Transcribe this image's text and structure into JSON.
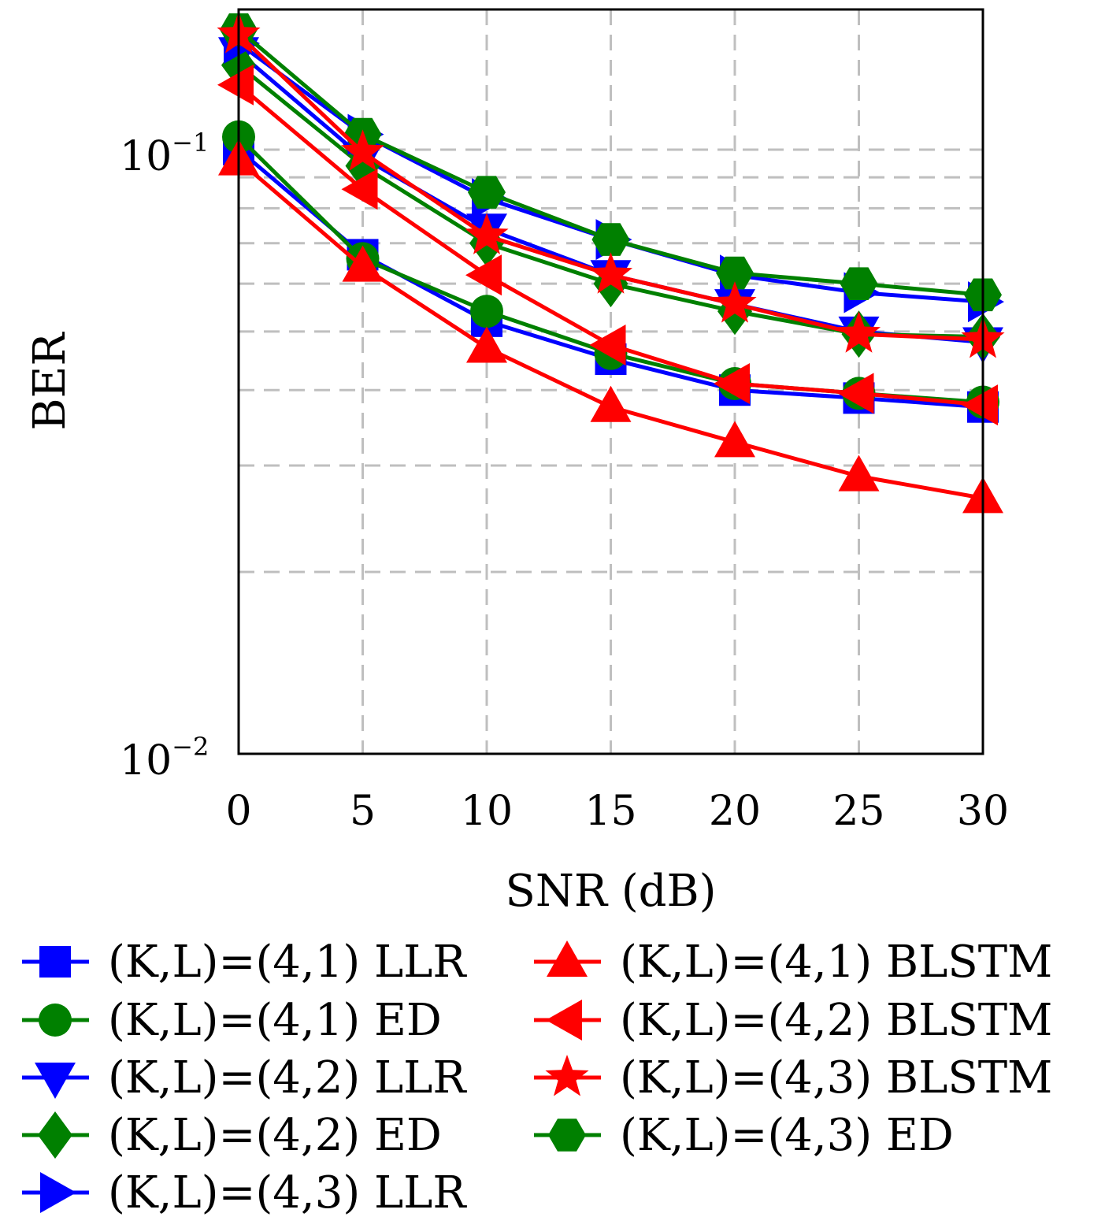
{
  "chart_data": {
    "type": "line",
    "xlabel": "SNR (dB)",
    "ylabel": "BER",
    "xlim": [
      0,
      30
    ],
    "ylim": [
      0.01,
      0.16
    ],
    "yscale": "log",
    "grid": true,
    "legend_position": "bottom",
    "x_ticks": [
      "0",
      "5",
      "10",
      "15",
      "20",
      "25",
      "30"
    ],
    "y_ticks": [
      {
        "base": "10",
        "exp": "−1",
        "value": 0.1
      },
      {
        "base": "10",
        "exp": "−2",
        "value": 0.01
      }
    ],
    "x": [
      0,
      5,
      10,
      15,
      20,
      25,
      30
    ],
    "series": [
      {
        "name": "(K,L)=(4,1) LLR",
        "color": "#0000ff",
        "marker": "square",
        "values": [
          0.1,
          0.067,
          0.052,
          0.045,
          0.04,
          0.0388,
          0.0375
        ]
      },
      {
        "name": "(K,L)=(4,1) ED",
        "color": "#008000",
        "marker": "circle",
        "values": [
          0.105,
          0.066,
          0.054,
          0.046,
          0.041,
          0.0395,
          0.0382
        ]
      },
      {
        "name": "(K,L)=(4,2) LLR",
        "color": "#0000ff",
        "marker": "triangle-down",
        "values": [
          0.145,
          0.097,
          0.074,
          0.062,
          0.0555,
          0.05,
          0.048
        ]
      },
      {
        "name": "(K,L)=(4,2) ED",
        "color": "#008000",
        "marker": "diamond",
        "values": [
          0.138,
          0.094,
          0.07,
          0.06,
          0.054,
          0.0495,
          0.049
        ]
      },
      {
        "name": "(K,L)=(4,3) LLR",
        "color": "#0000ff",
        "marker": "triangle-right",
        "values": [
          0.15,
          0.106,
          0.083,
          0.071,
          0.062,
          0.058,
          0.056
        ]
      },
      {
        "name": "(K,L)=(4,1) BLSTM",
        "color": "#ff0000",
        "marker": "triangle-up",
        "values": [
          0.096,
          0.064,
          0.047,
          0.0375,
          0.0328,
          0.0288,
          0.0265
        ]
      },
      {
        "name": "(K,L)=(4,2) BLSTM",
        "color": "#ff0000",
        "marker": "triangle-left",
        "values": [
          0.128,
          0.086,
          0.062,
          0.0475,
          0.041,
          0.0395,
          0.0378
        ]
      },
      {
        "name": "(K,L)=(4,3) BLSTM",
        "color": "#ff0000",
        "marker": "star",
        "values": [
          0.155,
          0.099,
          0.072,
          0.062,
          0.0555,
          0.0495,
          0.0485
        ]
      },
      {
        "name": "(K,L)=(4,3) ED",
        "color": "#008000",
        "marker": "hexagon",
        "values": [
          0.158,
          0.106,
          0.085,
          0.071,
          0.0625,
          0.06,
          0.0575
        ]
      }
    ],
    "legend_columns": [
      [
        0,
        1,
        2,
        3,
        4
      ],
      [
        5,
        6,
        7,
        8
      ]
    ]
  }
}
